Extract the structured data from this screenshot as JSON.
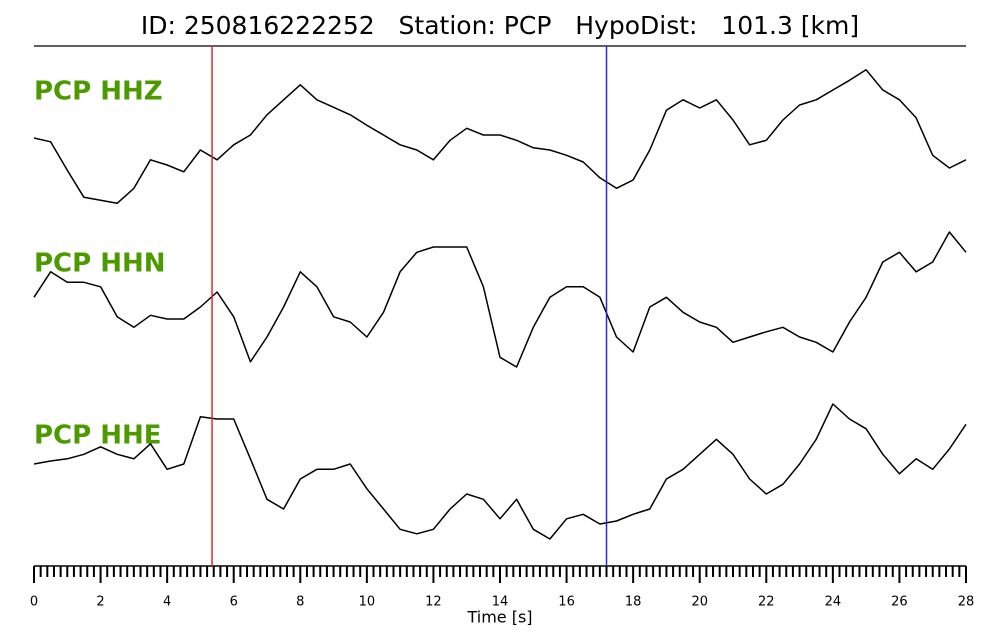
{
  "chart_data": {
    "type": "line",
    "title": "ID: 250816222252   Station: PCP   HypoDist:   101.3 [km]",
    "xlabel": "Time [s]",
    "xlim": [
      0,
      28
    ],
    "xticks": [
      0,
      2,
      4,
      6,
      8,
      10,
      12,
      14,
      16,
      18,
      20,
      22,
      24,
      26,
      28
    ],
    "xminorticks": [
      0.2,
      0.4,
      0.6,
      0.8,
      1,
      1.2,
      1.4,
      1.6,
      1.8,
      2.2,
      2.4,
      2.6,
      2.8,
      3,
      3.2,
      3.4,
      3.6,
      3.8,
      4.2,
      4.4,
      4.6,
      4.8,
      5,
      5.2,
      5.4,
      5.6,
      5.8,
      6.2,
      6.4,
      6.6,
      6.8,
      7,
      7.2,
      7.4,
      7.6,
      7.8,
      8.2,
      8.4,
      8.6,
      8.8,
      9,
      9.2,
      9.4,
      9.6,
      9.8,
      10.2,
      10.4,
      10.6,
      10.8,
      11,
      11.2,
      11.4,
      11.6,
      11.8,
      12.2,
      12.4,
      12.6,
      12.8,
      13,
      13.2,
      13.4,
      13.6,
      13.8,
      14.2,
      14.4,
      14.6,
      14.8,
      15,
      15.2,
      15.4,
      15.6,
      15.8,
      16.2,
      16.4,
      16.6,
      16.8,
      17,
      17.2,
      17.4,
      17.6,
      17.8,
      18.2,
      18.4,
      18.6,
      18.8,
      19,
      19.2,
      19.4,
      19.6,
      19.8,
      20.2,
      20.4,
      20.6,
      20.8,
      21,
      21.2,
      21.4,
      21.6,
      21.8,
      22.2,
      22.4,
      22.6,
      22.8,
      23,
      23.2,
      23.4,
      23.6,
      23.8,
      24.2,
      24.4,
      24.6,
      24.8,
      25,
      25.2,
      25.4,
      25.6,
      25.8,
      26.2,
      26.4,
      26.6,
      26.8,
      27,
      27.2,
      27.4,
      27.6,
      27.8
    ],
    "x": [
      0,
      0.5,
      1,
      1.5,
      2,
      2.5,
      3,
      3.5,
      4,
      4.5,
      5,
      5.5,
      6,
      6.5,
      7,
      7.5,
      8,
      8.5,
      9,
      9.5,
      10,
      10.5,
      11,
      11.5,
      12,
      12.5,
      13,
      13.5,
      14,
      14.5,
      15,
      15.5,
      16,
      16.5,
      17,
      17.5,
      18,
      18.5,
      19,
      19.5,
      20,
      20.5,
      21,
      21.5,
      22,
      22.5,
      23,
      23.5,
      24,
      24.5,
      25,
      25.5,
      26,
      26.5,
      27,
      27.5,
      28
    ],
    "label_color": "#4c9a00",
    "series": [
      {
        "name": "PCP HHZ",
        "color": "#000000",
        "values": [
          -0.04,
          -0.09,
          -0.47,
          -0.83,
          -0.87,
          -0.91,
          -0.71,
          -0.33,
          -0.4,
          -0.49,
          -0.2,
          -0.33,
          -0.13,
          0,
          0.27,
          0.47,
          0.67,
          0.47,
          0.37,
          0.27,
          0.13,
          0,
          -0.13,
          -0.2,
          -0.33,
          -0.07,
          0.09,
          0,
          0,
          -0.07,
          -0.17,
          -0.2,
          -0.27,
          -0.36,
          -0.57,
          -0.71,
          -0.6,
          -0.2,
          0.33,
          0.47,
          0.36,
          0.47,
          0.2,
          -0.13,
          -0.07,
          0.2,
          0.4,
          0.47,
          0.6,
          0.73,
          0.87,
          0.6,
          0.47,
          0.23,
          -0.27,
          -0.44,
          -0.33
        ]
      },
      {
        "name": "PCP HHN",
        "color": "#000000",
        "values": [
          0.13,
          0.47,
          0.33,
          0.33,
          0.27,
          -0.13,
          -0.27,
          -0.11,
          -0.16,
          -0.16,
          0,
          0.2,
          -0.13,
          -0.73,
          -0.4,
          0,
          0.47,
          0.27,
          -0.13,
          -0.2,
          -0.4,
          -0.07,
          0.47,
          0.73,
          0.8,
          0.8,
          0.8,
          0.27,
          -0.67,
          -0.8,
          -0.27,
          0.13,
          0.27,
          0.27,
          0.13,
          -0.4,
          -0.6,
          0,
          0.13,
          -0.07,
          -0.2,
          -0.27,
          -0.47,
          -0.4,
          -0.33,
          -0.27,
          -0.4,
          -0.47,
          -0.6,
          -0.2,
          0.13,
          0.6,
          0.73,
          0.47,
          0.6,
          1,
          0.73
        ]
      },
      {
        "name": "PCP HHE",
        "color": "#000000",
        "values": [
          0.2,
          0.24,
          0.27,
          0.33,
          0.43,
          0.33,
          0.27,
          0.47,
          0.13,
          0.2,
          0.83,
          0.8,
          0.8,
          0.27,
          -0.27,
          -0.4,
          0,
          0.13,
          0.13,
          0.2,
          -0.13,
          -0.4,
          -0.67,
          -0.73,
          -0.67,
          -0.4,
          -0.2,
          -0.27,
          -0.53,
          -0.27,
          -0.67,
          -0.8,
          -0.53,
          -0.47,
          -0.6,
          -0.56,
          -0.47,
          -0.4,
          0,
          0.13,
          0.33,
          0.53,
          0.33,
          0,
          -0.2,
          -0.07,
          0.2,
          0.53,
          1,
          0.8,
          0.67,
          0.33,
          0.07,
          0.27,
          0.13,
          0.4,
          0.73
        ]
      }
    ],
    "markers": [
      {
        "x": 5.35,
        "color": "#e8282a"
      },
      {
        "x": 17.2,
        "color": "#2a2acc"
      }
    ]
  }
}
